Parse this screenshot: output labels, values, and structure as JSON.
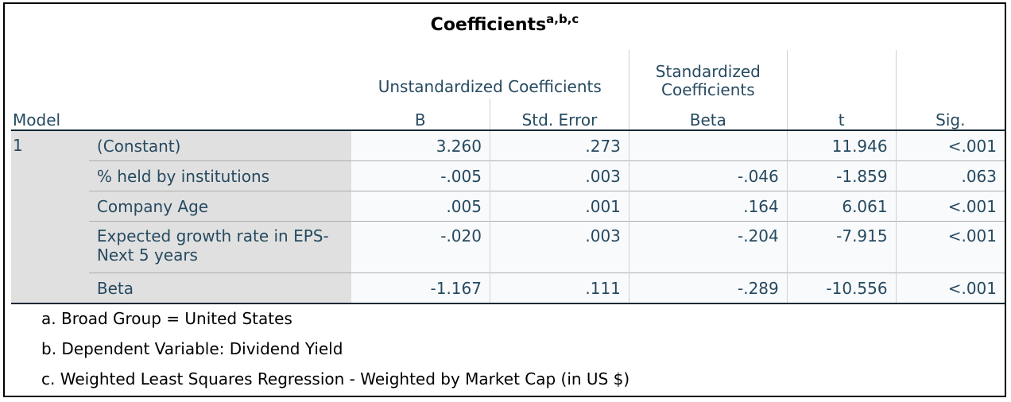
{
  "title": "Coefficients",
  "title_sup": "a,b,c",
  "headers": {
    "model": "Model",
    "unstd": "Unstandardized Coefficients",
    "std": "Standardized Coefficients",
    "b": "B",
    "se": "Std. Error",
    "beta": "Beta",
    "t": "t",
    "sig": "Sig."
  },
  "model": "1",
  "rows": [
    {
      "label": "(Constant)",
      "b": "3.260",
      "se": ".273",
      "beta": "",
      "t": "11.946",
      "sig": "<.001"
    },
    {
      "label": "% held by institutions",
      "b": "-.005",
      "se": ".003",
      "beta": "-.046",
      "t": "-1.859",
      "sig": ".063"
    },
    {
      "label": "Company Age",
      "b": ".005",
      "se": ".001",
      "beta": ".164",
      "t": "6.061",
      "sig": "<.001"
    },
    {
      "label": "Expected growth rate in EPS- Next 5 years",
      "b": "-.020",
      "se": ".003",
      "beta": "-.204",
      "t": "-7.915",
      "sig": "<.001"
    },
    {
      "label": "Beta",
      "b": "-1.167",
      "se": ".111",
      "beta": "-.289",
      "t": "-10.556",
      "sig": "<.001"
    }
  ],
  "footnotes": [
    "a. Broad Group = United States",
    "b. Dependent Variable: Dividend Yield",
    "c. Weighted Least Squares Regression - Weighted by Market Cap (in US $)"
  ]
}
